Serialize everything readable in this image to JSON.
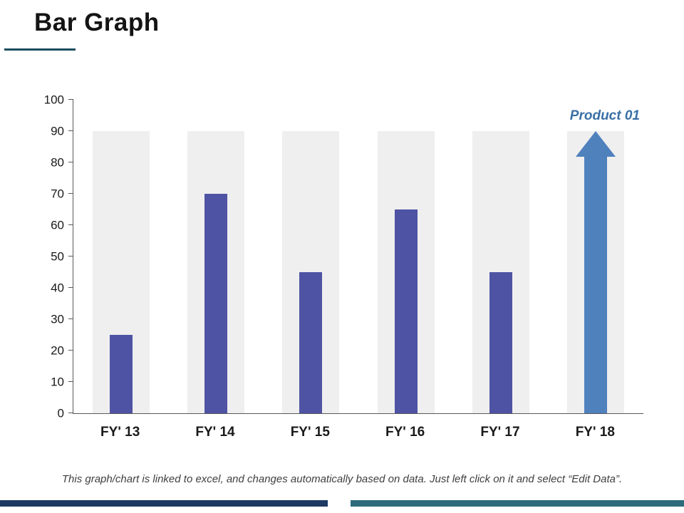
{
  "slide": {
    "title": "Bar Graph",
    "footer": "This graph/chart is linked to excel, and changes automatically based on data. Just left click on it and select “Edit Data”.",
    "accent_colors": {
      "title_underline": "#1d4e5f",
      "bottom_left_bar": "#1e3a63",
      "bottom_right_bar": "#2d6b7d"
    }
  },
  "chart_data": {
    "type": "bar",
    "title": "Bar Graph",
    "categories": [
      "FY' 13",
      "FY' 14",
      "FY' 15",
      "FY' 16",
      "FY' 17",
      "FY' 18"
    ],
    "values": [
      25,
      70,
      45,
      65,
      45,
      90
    ],
    "series_label": "Product 01",
    "bar_color": "#4e53a4",
    "background_bars": {
      "value": 90,
      "color": "#efefef"
    },
    "highlight": {
      "category": "FY' 18",
      "style": "arrow-up",
      "value": 90,
      "color": "#4f81bd"
    },
    "xlabel": "",
    "ylabel": "",
    "ylim": [
      0,
      100
    ],
    "yticks": [
      0,
      10,
      20,
      30,
      40,
      50,
      60,
      70,
      80,
      90,
      100
    ],
    "grid": false,
    "legend_position": "top-right"
  }
}
